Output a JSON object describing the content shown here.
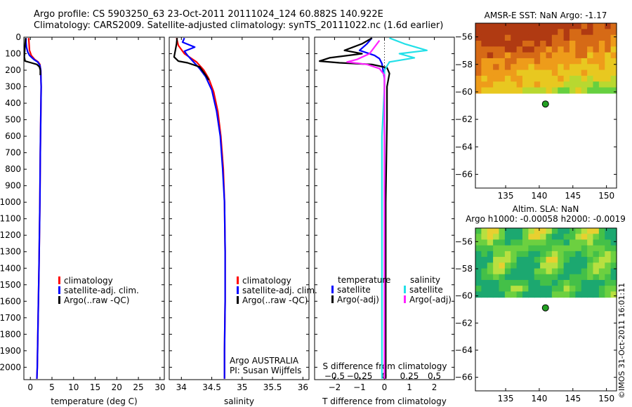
{
  "header": {
    "line1": "Argo profile: CS 5903250_63 23-Oct-2011 20111024_124 60.882S 140.922E",
    "line2": "Climatology: CARS2009. Satellite-adjusted climatology: synTS_20111022.nc (1.6d earlier)"
  },
  "credit": "©IMOS 31-Oct-2011 16:01:11",
  "colors": {
    "climatology": "#ff0000",
    "satellite": "#0000ff",
    "argo": "#000000",
    "sal_satellite": "#22e0e8",
    "sal_argo": "#ff22ff"
  },
  "chart_data": [
    {
      "id": "temperature",
      "type": "line",
      "xlabel": "temperature (deg C)",
      "xlim": [
        -1.5,
        31
      ],
      "xticks": [
        0,
        5,
        10,
        15,
        20,
        25,
        30
      ],
      "ylim": [
        2075,
        0
      ],
      "yticks": [
        0,
        100,
        200,
        300,
        400,
        500,
        600,
        700,
        800,
        900,
        1000,
        1100,
        1200,
        1300,
        1400,
        1500,
        1600,
        1700,
        1800,
        1900,
        2000
      ],
      "legend": [
        "climatology",
        "satellite-adj. clim.",
        "Argo(..raw -QC)"
      ],
      "series": [
        {
          "name": "climatology",
          "color": "#ff0000",
          "points": [
            [
              -0.4,
              5
            ],
            [
              -0.3,
              40
            ],
            [
              -0.2,
              80
            ],
            [
              0.2,
              110
            ],
            [
              1.0,
              135
            ],
            [
              1.8,
              150
            ],
            [
              2.2,
              165
            ],
            [
              2.4,
              200
            ],
            [
              2.5,
              300
            ],
            [
              2.4,
              500
            ],
            [
              2.3,
              700
            ],
            [
              2.2,
              1000
            ],
            [
              2.0,
              1400
            ],
            [
              1.8,
              1700
            ],
            [
              1.6,
              2000
            ],
            [
              1.5,
              2070
            ]
          ]
        },
        {
          "name": "satellite-adj. clim.",
          "color": "#0000ff",
          "points": [
            [
              -1.0,
              5
            ],
            [
              -1.0,
              30
            ],
            [
              -0.9,
              60
            ],
            [
              -0.6,
              90
            ],
            [
              -0.2,
              110
            ],
            [
              0.8,
              135
            ],
            [
              1.7,
              150
            ],
            [
              2.2,
              170
            ],
            [
              2.4,
              200
            ],
            [
              2.5,
              300
            ],
            [
              2.4,
              500
            ],
            [
              2.3,
              700
            ],
            [
              2.2,
              1000
            ],
            [
              2.0,
              1400
            ],
            [
              1.8,
              1700
            ],
            [
              1.6,
              2000
            ],
            [
              1.5,
              2070
            ]
          ]
        },
        {
          "name": "Argo(..raw -QC)",
          "color": "#000000",
          "points": [
            [
              -1.1,
              5
            ],
            [
              -1.2,
              40
            ],
            [
              -1.3,
              80
            ],
            [
              -1.4,
              120
            ],
            [
              -1.2,
              145
            ],
            [
              0.2,
              155
            ],
            [
              1.5,
              165
            ],
            [
              2.1,
              180
            ],
            [
              2.3,
              200
            ],
            [
              2.3,
              230
            ]
          ]
        }
      ]
    },
    {
      "id": "salinity",
      "type": "line",
      "xlabel": "salinity",
      "xlim": [
        33.8,
        36.1
      ],
      "xticks": [
        34,
        34.5,
        35,
        35.5,
        36
      ],
      "ylim": [
        2075,
        0
      ],
      "legend": [
        "climatology",
        "satellite-adj. clim.",
        "Argo(..raw -QC)"
      ],
      "annotation": [
        "Argo AUSTRALIA",
        "PI: Susan Wijffels"
      ],
      "series": [
        {
          "name": "climatology",
          "color": "#ff0000",
          "points": [
            [
              33.92,
              5
            ],
            [
              33.95,
              50
            ],
            [
              34.05,
              100
            ],
            [
              34.25,
              150
            ],
            [
              34.37,
              200
            ],
            [
              34.45,
              250
            ],
            [
              34.53,
              330
            ],
            [
              34.6,
              450
            ],
            [
              34.65,
              600
            ],
            [
              34.69,
              800
            ],
            [
              34.71,
              1000
            ],
            [
              34.72,
              1300
            ],
            [
              34.72,
              1600
            ],
            [
              34.71,
              1900
            ],
            [
              34.71,
              2070
            ]
          ]
        },
        {
          "name": "satellite-adj. clim.",
          "color": "#0000ff",
          "points": [
            [
              34.05,
              5
            ],
            [
              34.02,
              30
            ],
            [
              34.22,
              60
            ],
            [
              34.05,
              85
            ],
            [
              34.1,
              110
            ],
            [
              34.2,
              150
            ],
            [
              34.3,
              190
            ],
            [
              34.4,
              240
            ],
            [
              34.5,
              320
            ],
            [
              34.58,
              450
            ],
            [
              34.64,
              600
            ],
            [
              34.68,
              800
            ],
            [
              34.71,
              1000
            ],
            [
              34.72,
              1300
            ],
            [
              34.72,
              1600
            ],
            [
              34.71,
              1900
            ],
            [
              34.71,
              2070
            ]
          ]
        },
        {
          "name": "Argo(..raw -QC)",
          "color": "#000000",
          "points": [
            [
              33.93,
              5
            ],
            [
              33.92,
              40
            ],
            [
              33.9,
              80
            ],
            [
              33.88,
              120
            ],
            [
              33.95,
              145
            ],
            [
              34.1,
              155
            ],
            [
              34.3,
              180
            ],
            [
              34.4,
              230
            ],
            [
              34.45,
              260
            ]
          ]
        }
      ]
    },
    {
      "id": "difference",
      "type": "line",
      "xlabel": "T difference from climatology",
      "xlim": [
        -2.8,
        2.8
      ],
      "xticks": [
        -2,
        -1,
        0,
        1,
        2
      ],
      "top_xlabel": "S difference from climatology",
      "top_xticks": [
        -0.5,
        -0.25,
        0,
        0.25,
        0.5
      ],
      "ylim": [
        2075,
        0
      ],
      "legend_titles": [
        "temperature",
        "salinity"
      ],
      "legend": [
        "satellite",
        "Argo(-adj)",
        "satellite",
        "Argo(-adj)"
      ],
      "series": [
        {
          "name": "satellite",
          "color": "#0000ff",
          "points": [
            [
              -0.5,
              5
            ],
            [
              -0.7,
              40
            ],
            [
              -1.0,
              80
            ],
            [
              -0.4,
              110
            ],
            [
              -0.2,
              130
            ],
            [
              -0.1,
              160
            ],
            [
              0.0,
              250
            ],
            [
              0.0,
              600
            ],
            [
              0.0,
              1000
            ],
            [
              0.0,
              2070
            ]
          ]
        },
        {
          "name": "Argo(-adj)",
          "color": "#000000",
          "points": [
            [
              -0.5,
              5
            ],
            [
              -0.9,
              40
            ],
            [
              -1.6,
              80
            ],
            [
              -0.9,
              100
            ],
            [
              -2.2,
              125
            ],
            [
              -2.6,
              145
            ],
            [
              -1.8,
              155
            ],
            [
              -0.5,
              165
            ],
            [
              0.1,
              185
            ],
            [
              0.2,
              220
            ],
            [
              0.1,
              300
            ],
            [
              0.1,
              500
            ],
            [
              0.05,
              1000
            ],
            [
              0.05,
              2070
            ]
          ]
        },
        {
          "name": "satellite",
          "color": "#22e0e8",
          "points": [
            [
              0.2,
              5
            ],
            [
              0.8,
              40
            ],
            [
              1.7,
              80
            ],
            [
              0.6,
              100
            ],
            [
              1.2,
              125
            ],
            [
              0.2,
              150
            ],
            [
              0.0,
              200
            ],
            [
              0.0,
              300
            ],
            [
              -0.1,
              600
            ],
            [
              -0.1,
              1000
            ],
            [
              -0.1,
              2070
            ]
          ]
        },
        {
          "name": "Argo(-adj)",
          "color": "#ff22ff",
          "points": [
            [
              -0.2,
              20
            ],
            [
              -0.6,
              100
            ],
            [
              -1.1,
              135
            ],
            [
              -1.5,
              150
            ],
            [
              -0.7,
              165
            ],
            [
              -0.2,
              190
            ],
            [
              0.0,
              230
            ],
            [
              0.0,
              2070
            ]
          ]
        }
      ]
    },
    {
      "id": "sst_map",
      "type": "heatmap",
      "title": "AMSR-E SST: NaN Argo: -1.17",
      "xlim": [
        130.5,
        151.5
      ],
      "ylim": [
        -67,
        -55
      ],
      "xticks": [
        135,
        140,
        145,
        150
      ],
      "yticks": [
        -56,
        -58,
        -60,
        -62,
        -64,
        -66
      ],
      "data_until_lat": -60.1,
      "marker": {
        "lon": 140.922,
        "lat": -60.882,
        "color": "#22a022"
      }
    },
    {
      "id": "sla_map",
      "type": "heatmap",
      "title": "Altim. SLA: NaN",
      "subtitle": "Argo h1000: -0.00058 h2000: -0.0019",
      "xlim": [
        130.5,
        151.5
      ],
      "ylim": [
        -67,
        -55
      ],
      "xticks": [
        135,
        140,
        145,
        150
      ],
      "yticks": [
        -56,
        -58,
        -60,
        -62,
        -64,
        -66
      ],
      "data_until_lat": -60.1,
      "marker": {
        "lon": 140.922,
        "lat": -60.882,
        "color": "#22a022"
      }
    }
  ]
}
